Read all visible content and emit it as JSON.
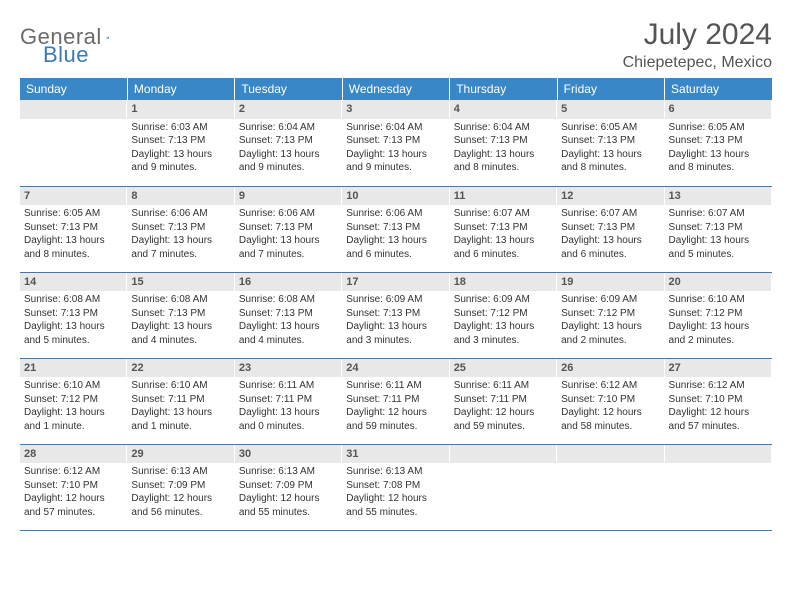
{
  "logo": {
    "text1": "General",
    "text2": "Blue"
  },
  "title": "July 2024",
  "location": "Chiepetepec, Mexico",
  "colors": {
    "header_bg": "#3a87c7",
    "header_text": "#ffffff",
    "daynum_bg": "#e8e8e8",
    "border": "#3a7ab8",
    "logo_gray": "#6b6b6b",
    "logo_blue": "#3a7ab8"
  },
  "weekdays": [
    "Sunday",
    "Monday",
    "Tuesday",
    "Wednesday",
    "Thursday",
    "Friday",
    "Saturday"
  ],
  "weeks": [
    [
      {
        "day": "",
        "lines": []
      },
      {
        "day": "1",
        "lines": [
          "Sunrise: 6:03 AM",
          "Sunset: 7:13 PM",
          "Daylight: 13 hours and 9 minutes."
        ]
      },
      {
        "day": "2",
        "lines": [
          "Sunrise: 6:04 AM",
          "Sunset: 7:13 PM",
          "Daylight: 13 hours and 9 minutes."
        ]
      },
      {
        "day": "3",
        "lines": [
          "Sunrise: 6:04 AM",
          "Sunset: 7:13 PM",
          "Daylight: 13 hours and 9 minutes."
        ]
      },
      {
        "day": "4",
        "lines": [
          "Sunrise: 6:04 AM",
          "Sunset: 7:13 PM",
          "Daylight: 13 hours and 8 minutes."
        ]
      },
      {
        "day": "5",
        "lines": [
          "Sunrise: 6:05 AM",
          "Sunset: 7:13 PM",
          "Daylight: 13 hours and 8 minutes."
        ]
      },
      {
        "day": "6",
        "lines": [
          "Sunrise: 6:05 AM",
          "Sunset: 7:13 PM",
          "Daylight: 13 hours and 8 minutes."
        ]
      }
    ],
    [
      {
        "day": "7",
        "lines": [
          "Sunrise: 6:05 AM",
          "Sunset: 7:13 PM",
          "Daylight: 13 hours and 8 minutes."
        ]
      },
      {
        "day": "8",
        "lines": [
          "Sunrise: 6:06 AM",
          "Sunset: 7:13 PM",
          "Daylight: 13 hours and 7 minutes."
        ]
      },
      {
        "day": "9",
        "lines": [
          "Sunrise: 6:06 AM",
          "Sunset: 7:13 PM",
          "Daylight: 13 hours and 7 minutes."
        ]
      },
      {
        "day": "10",
        "lines": [
          "Sunrise: 6:06 AM",
          "Sunset: 7:13 PM",
          "Daylight: 13 hours and 6 minutes."
        ]
      },
      {
        "day": "11",
        "lines": [
          "Sunrise: 6:07 AM",
          "Sunset: 7:13 PM",
          "Daylight: 13 hours and 6 minutes."
        ]
      },
      {
        "day": "12",
        "lines": [
          "Sunrise: 6:07 AM",
          "Sunset: 7:13 PM",
          "Daylight: 13 hours and 6 minutes."
        ]
      },
      {
        "day": "13",
        "lines": [
          "Sunrise: 6:07 AM",
          "Sunset: 7:13 PM",
          "Daylight: 13 hours and 5 minutes."
        ]
      }
    ],
    [
      {
        "day": "14",
        "lines": [
          "Sunrise: 6:08 AM",
          "Sunset: 7:13 PM",
          "Daylight: 13 hours and 5 minutes."
        ]
      },
      {
        "day": "15",
        "lines": [
          "Sunrise: 6:08 AM",
          "Sunset: 7:13 PM",
          "Daylight: 13 hours and 4 minutes."
        ]
      },
      {
        "day": "16",
        "lines": [
          "Sunrise: 6:08 AM",
          "Sunset: 7:13 PM",
          "Daylight: 13 hours and 4 minutes."
        ]
      },
      {
        "day": "17",
        "lines": [
          "Sunrise: 6:09 AM",
          "Sunset: 7:13 PM",
          "Daylight: 13 hours and 3 minutes."
        ]
      },
      {
        "day": "18",
        "lines": [
          "Sunrise: 6:09 AM",
          "Sunset: 7:12 PM",
          "Daylight: 13 hours and 3 minutes."
        ]
      },
      {
        "day": "19",
        "lines": [
          "Sunrise: 6:09 AM",
          "Sunset: 7:12 PM",
          "Daylight: 13 hours and 2 minutes."
        ]
      },
      {
        "day": "20",
        "lines": [
          "Sunrise: 6:10 AM",
          "Sunset: 7:12 PM",
          "Daylight: 13 hours and 2 minutes."
        ]
      }
    ],
    [
      {
        "day": "21",
        "lines": [
          "Sunrise: 6:10 AM",
          "Sunset: 7:12 PM",
          "Daylight: 13 hours and 1 minute."
        ]
      },
      {
        "day": "22",
        "lines": [
          "Sunrise: 6:10 AM",
          "Sunset: 7:11 PM",
          "Daylight: 13 hours and 1 minute."
        ]
      },
      {
        "day": "23",
        "lines": [
          "Sunrise: 6:11 AM",
          "Sunset: 7:11 PM",
          "Daylight: 13 hours and 0 minutes."
        ]
      },
      {
        "day": "24",
        "lines": [
          "Sunrise: 6:11 AM",
          "Sunset: 7:11 PM",
          "Daylight: 12 hours and 59 minutes."
        ]
      },
      {
        "day": "25",
        "lines": [
          "Sunrise: 6:11 AM",
          "Sunset: 7:11 PM",
          "Daylight: 12 hours and 59 minutes."
        ]
      },
      {
        "day": "26",
        "lines": [
          "Sunrise: 6:12 AM",
          "Sunset: 7:10 PM",
          "Daylight: 12 hours and 58 minutes."
        ]
      },
      {
        "day": "27",
        "lines": [
          "Sunrise: 6:12 AM",
          "Sunset: 7:10 PM",
          "Daylight: 12 hours and 57 minutes."
        ]
      }
    ],
    [
      {
        "day": "28",
        "lines": [
          "Sunrise: 6:12 AM",
          "Sunset: 7:10 PM",
          "Daylight: 12 hours and 57 minutes."
        ]
      },
      {
        "day": "29",
        "lines": [
          "Sunrise: 6:13 AM",
          "Sunset: 7:09 PM",
          "Daylight: 12 hours and 56 minutes."
        ]
      },
      {
        "day": "30",
        "lines": [
          "Sunrise: 6:13 AM",
          "Sunset: 7:09 PM",
          "Daylight: 12 hours and 55 minutes."
        ]
      },
      {
        "day": "31",
        "lines": [
          "Sunrise: 6:13 AM",
          "Sunset: 7:08 PM",
          "Daylight: 12 hours and 55 minutes."
        ]
      },
      {
        "day": "",
        "lines": []
      },
      {
        "day": "",
        "lines": []
      },
      {
        "day": "",
        "lines": []
      }
    ]
  ]
}
